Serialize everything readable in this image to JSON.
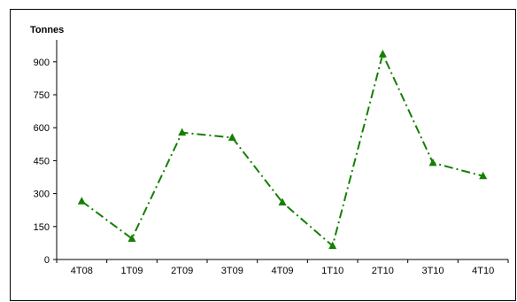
{
  "chart_data": {
    "type": "line",
    "ylabel": "Tonnes",
    "categories": [
      "4T08",
      "1T09",
      "2T09",
      "3T09",
      "4T09",
      "1T10",
      "2T10",
      "3T10",
      "4T10"
    ],
    "series": [
      {
        "values": [
          265,
          95,
          578,
          555,
          260,
          62,
          935,
          440,
          380
        ],
        "color": "#138000",
        "line_style": "dash-dot",
        "marker": "triangle"
      }
    ],
    "yticks": [
      0,
      150,
      300,
      450,
      600,
      750,
      900
    ],
    "ylim": [
      0,
      1000
    ],
    "grid": false,
    "legend": "none"
  }
}
